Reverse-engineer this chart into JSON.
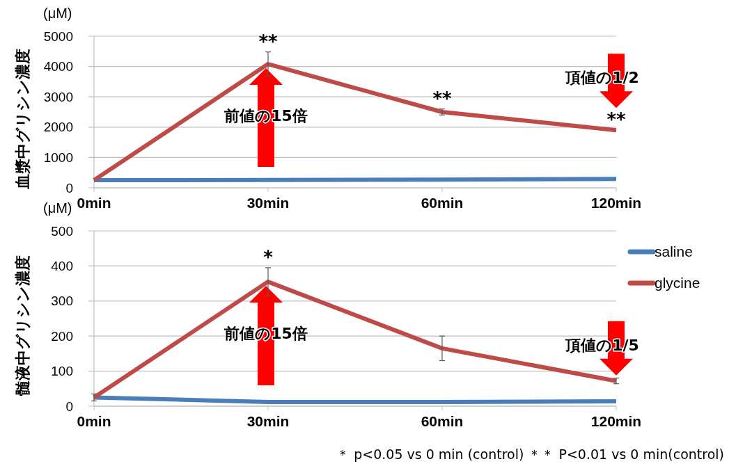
{
  "chart_data": [
    {
      "type": "line",
      "ylabel": "血漿中グリシン濃度",
      "categories": [
        "0min",
        "30min",
        "60min",
        "120min"
      ],
      "ylim": [
        0,
        5000
      ],
      "yticks": [
        0,
        1000,
        2000,
        3000,
        4000,
        5000
      ],
      "grid": "y",
      "legend": false,
      "marker": "none",
      "line_style": "solid",
      "series": [
        {
          "color": "#4a7ebb",
          "values": [
            250,
            260,
            270,
            290
          ]
        },
        {
          "color": "#be4b48",
          "values": [
            250,
            4080,
            2500,
            1900
          ],
          "errors": [
            null,
            400,
            100,
            null
          ]
        }
      ],
      "annotations": [
        "(μM)",
        {
          "text": "**",
          "x": "30min",
          "y": 4480
        },
        {
          "text": "**",
          "x": "60min",
          "y": 2600
        },
        {
          "text": "**",
          "x": "120min",
          "y": 1900
        },
        {
          "text": "前値の15倍",
          "x": "30min",
          "y": 4080
        },
        {
          "text": "頂値の1/2",
          "x": "120min",
          "y": 1900
        }
      ]
    },
    {
      "type": "line",
      "ylabel": "髄液中グリシン濃度",
      "categories": [
        "0min",
        "30min",
        "60min",
        "120min"
      ],
      "ylim": [
        0,
        500
      ],
      "yticks": [
        0,
        100,
        200,
        300,
        400,
        500
      ],
      "grid": "y",
      "legend": "right",
      "marker": "none",
      "line_style": "solid",
      "series": [
        {
          "name": "saline",
          "color": "#4a7ebb",
          "values": [
            25,
            12,
            12,
            14
          ]
        },
        {
          "name": "glycine",
          "color": "#be4b48",
          "values": [
            25,
            355,
            165,
            72
          ],
          "errors": [
            10,
            40,
            35,
            8
          ]
        }
      ],
      "annotations": [
        "(μM)",
        {
          "text": "*",
          "x": "30min",
          "y": 395
        },
        {
          "text": "前値の15倍",
          "x": "30min",
          "y": 355
        },
        {
          "text": "頂値の1/5",
          "x": "120min",
          "y": 72
        },
        "＊ p<0.05 vs 0 min (control) ＊＊ P<0.01 vs 0 min(control)"
      ]
    }
  ]
}
